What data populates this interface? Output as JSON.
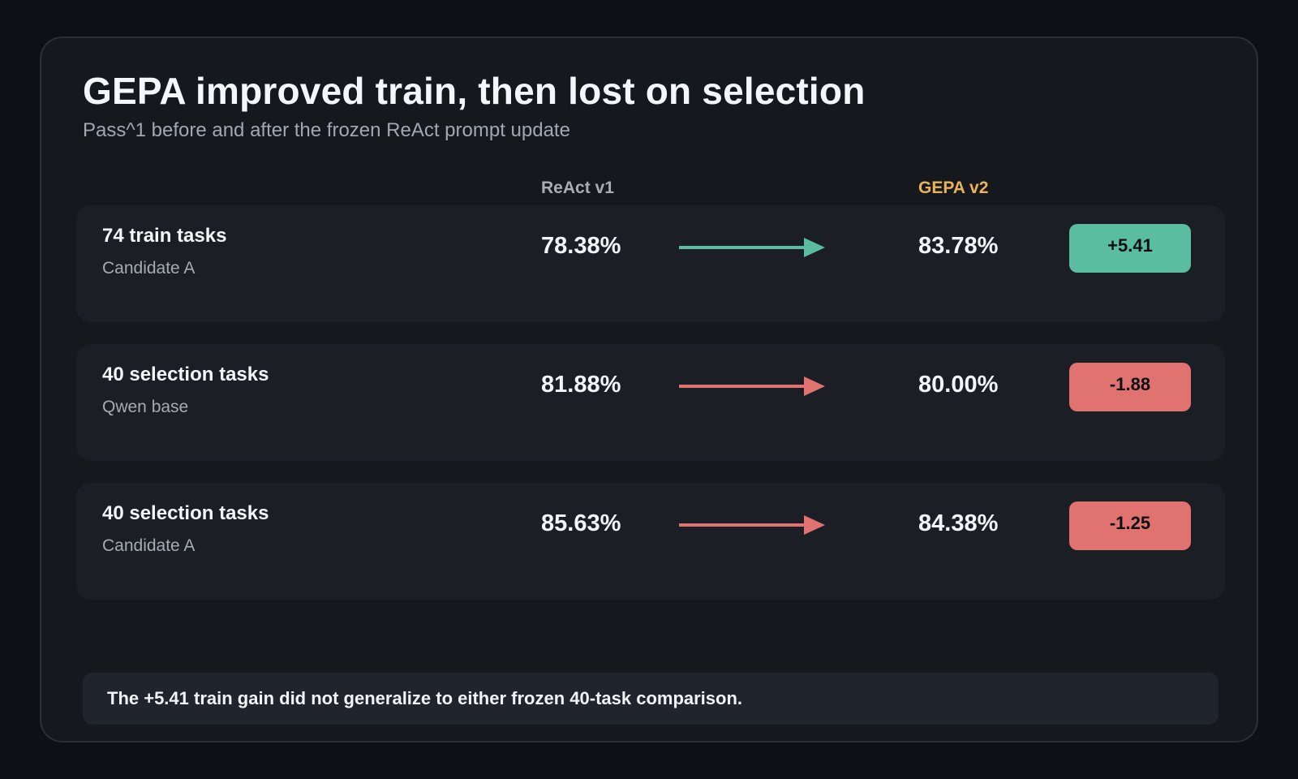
{
  "chart_data": {
    "type": "table",
    "title": "GEPA improved train, then lost on selection",
    "subtitle": "Pass^1 before and after the frozen ReAct prompt update",
    "columns": {
      "before": "ReAct v1",
      "after": "GEPA v2"
    },
    "rows": [
      {
        "label": "74 train tasks",
        "sublabel": "Candidate A",
        "before": "78.38%",
        "after": "83.78%",
        "delta": "+5.41",
        "direction": "up",
        "color": "#5bbd9f"
      },
      {
        "label": "40 selection tasks",
        "sublabel": "Qwen base",
        "before": "81.88%",
        "after": "80.00%",
        "delta": "-1.88",
        "direction": "down",
        "color": "#e07370"
      },
      {
        "label": "40 selection tasks",
        "sublabel": "Candidate A",
        "before": "85.63%",
        "after": "84.38%",
        "delta": "-1.25",
        "direction": "down",
        "color": "#e07370"
      }
    ],
    "note": "The +5.41 train gain did not generalize to either frozen 40-task comparison."
  },
  "colors": {
    "background": "#0d1016",
    "card": "#15181d",
    "row": "#1b1f25",
    "positive": "#5bbd9f",
    "negative": "#e07370",
    "accent_header": "#e9b35a"
  }
}
